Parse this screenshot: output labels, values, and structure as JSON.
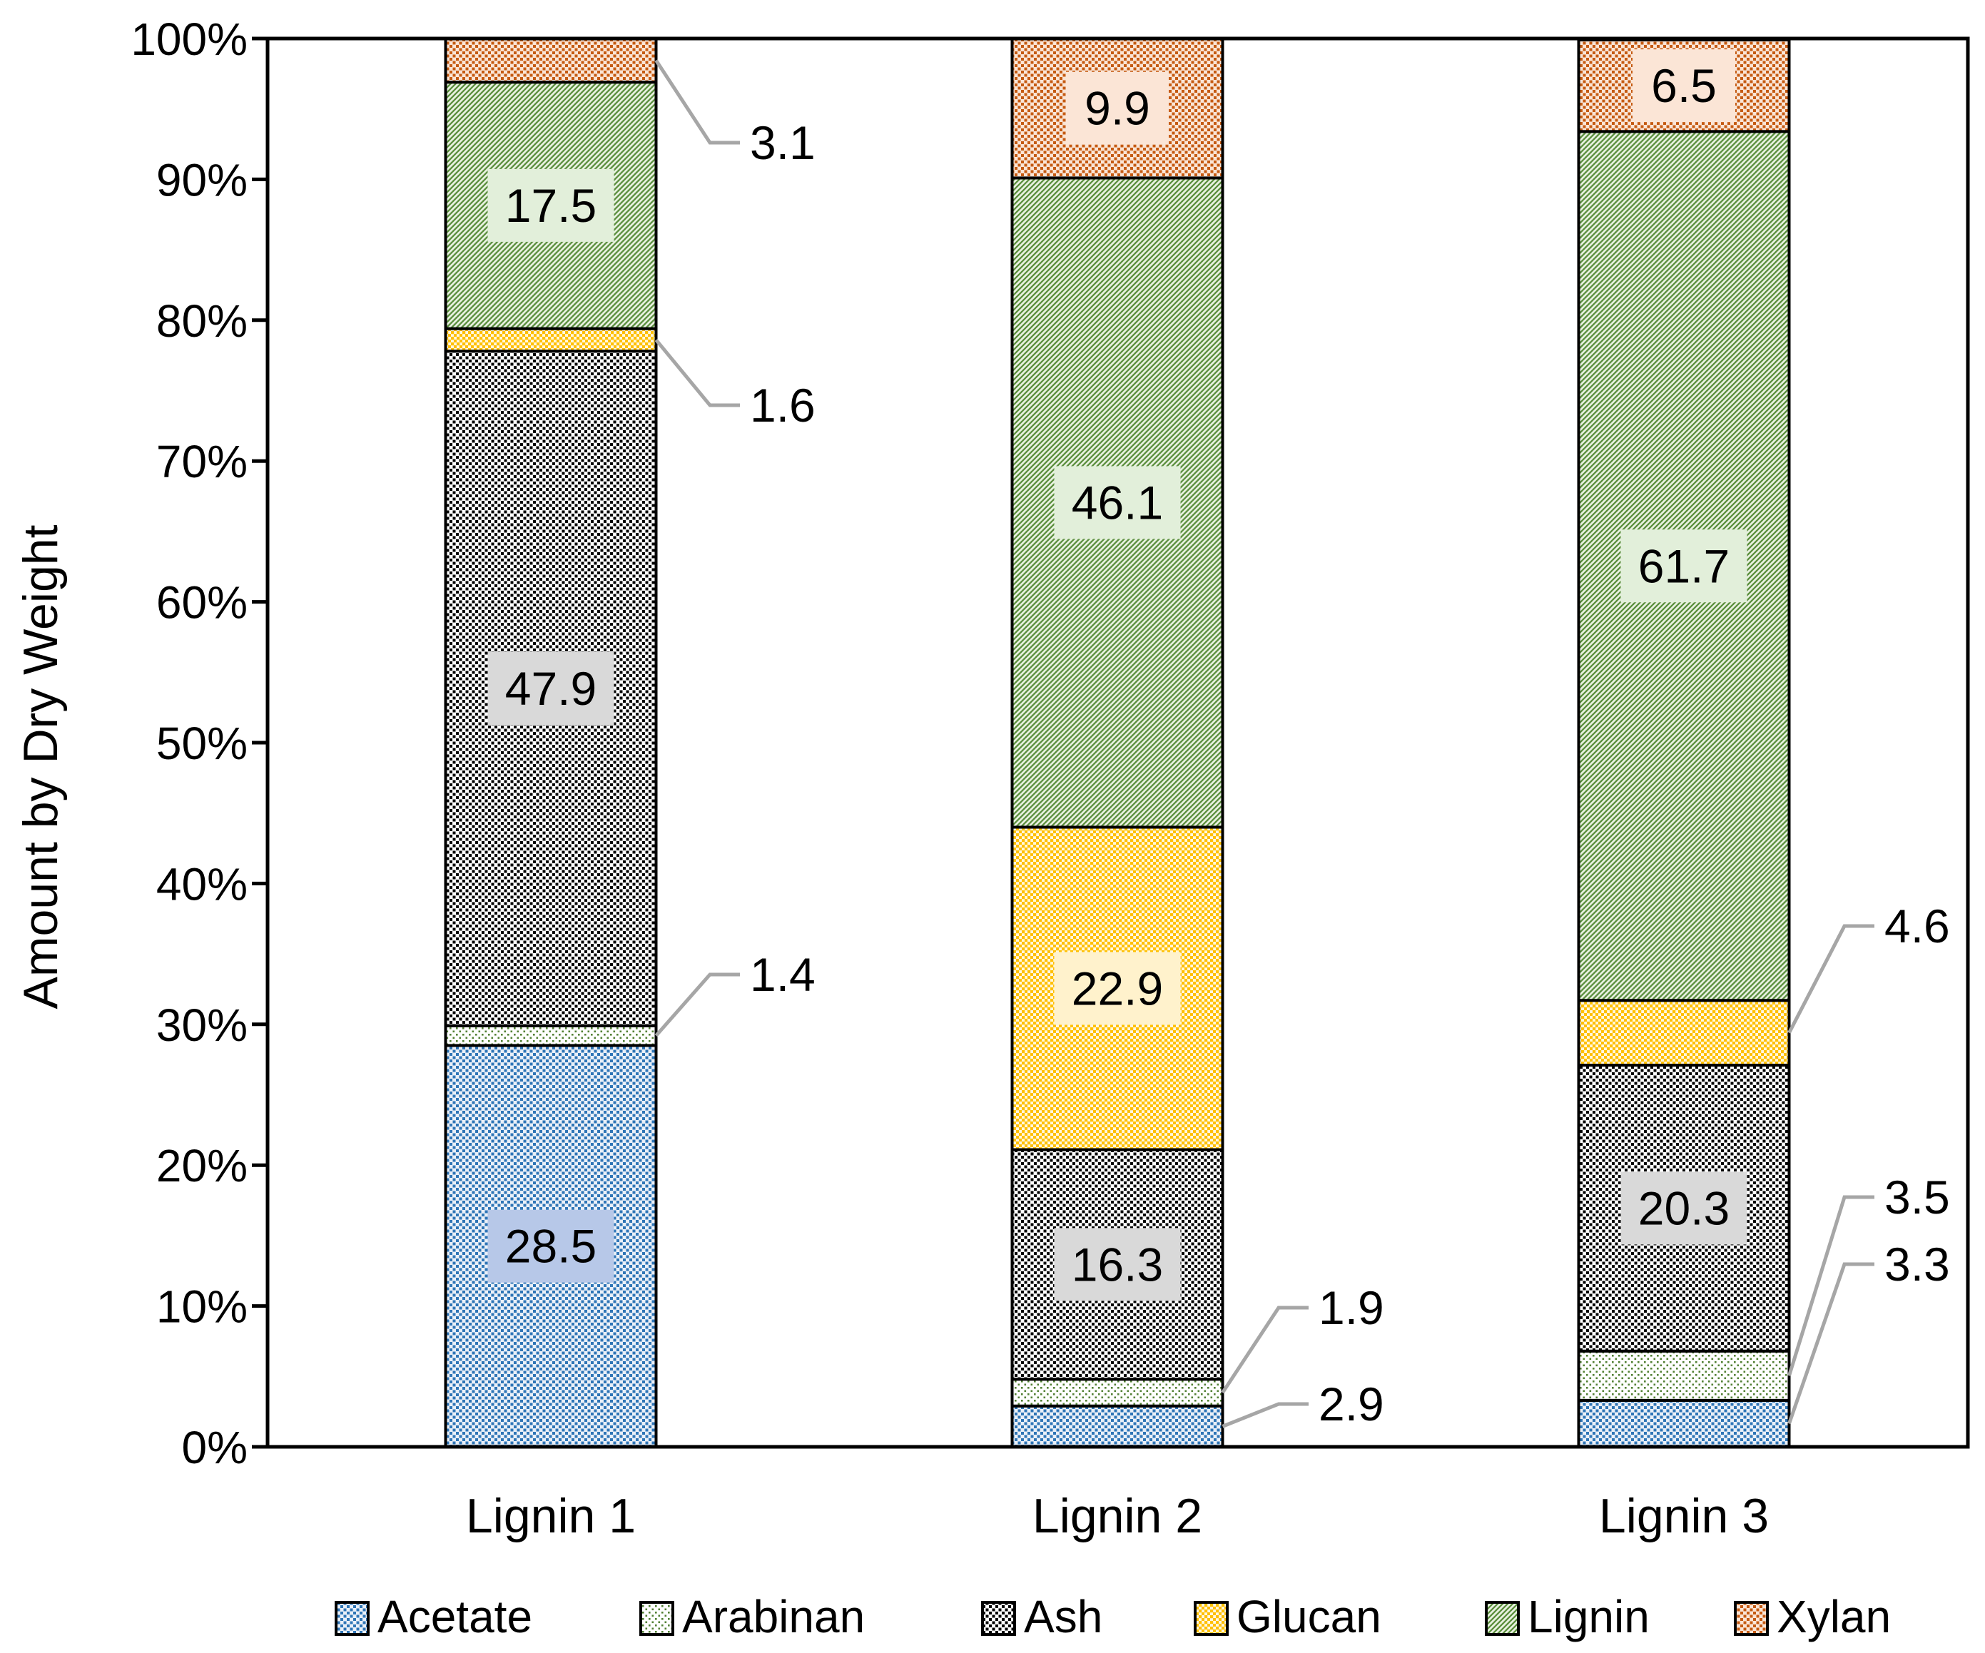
{
  "figure": {
    "background": "#FFFFFF",
    "axis_color": "#000000",
    "leader_color": "#A6A6A6"
  },
  "chart_data": {
    "type": "bar",
    "subtype": "stacked-100-percent",
    "title": "",
    "xlabel": "",
    "ylabel": "Amount by Dry Weight",
    "categories": [
      "Lignin 1",
      "Lignin 2",
      "Lignin 3"
    ],
    "series": [
      {
        "name": "Acetate",
        "values": [
          28.5,
          2.9,
          3.3
        ],
        "pattern": "dots",
        "fg": "#2E75B6",
        "bg": "#EAF0F8",
        "label_bg": "#B7C8E8"
      },
      {
        "name": "Arabinan",
        "values": [
          1.4,
          1.9,
          3.5
        ],
        "pattern": "dots-sparse",
        "fg": "#538135",
        "bg": "#FFFFFF",
        "label_bg": "#E2EFDA"
      },
      {
        "name": "Ash",
        "values": [
          47.9,
          16.3,
          20.3
        ],
        "pattern": "dots",
        "fg": "#000000",
        "bg": "#FFFFFF",
        "label_bg": "#D9D9D9"
      },
      {
        "name": "Glucan",
        "values": [
          1.6,
          22.9,
          4.6
        ],
        "pattern": "dots-dense",
        "fg": "#FFC000",
        "bg": "#FFF7E0",
        "label_bg": "#FFF2CC"
      },
      {
        "name": "Lignin",
        "values": [
          17.5,
          46.1,
          61.7
        ],
        "pattern": "diagonal",
        "fg": "#5B8F3D",
        "bg": "#EAF2E2",
        "label_bg": "#E2EFDA"
      },
      {
        "name": "Xylan",
        "values": [
          3.1,
          9.9,
          6.5
        ],
        "pattern": "dots",
        "fg": "#C55A11",
        "bg": "#FAE5D6",
        "label_bg": "#FBE5D6"
      }
    ],
    "y_ticks": [
      "0%",
      "10%",
      "20%",
      "30%",
      "40%",
      "50%",
      "60%",
      "70%",
      "80%",
      "90%",
      "100%"
    ],
    "ylim": [
      0,
      100
    ],
    "grid": false,
    "legend_position": "bottom",
    "inside_label_min": 6.0
  }
}
